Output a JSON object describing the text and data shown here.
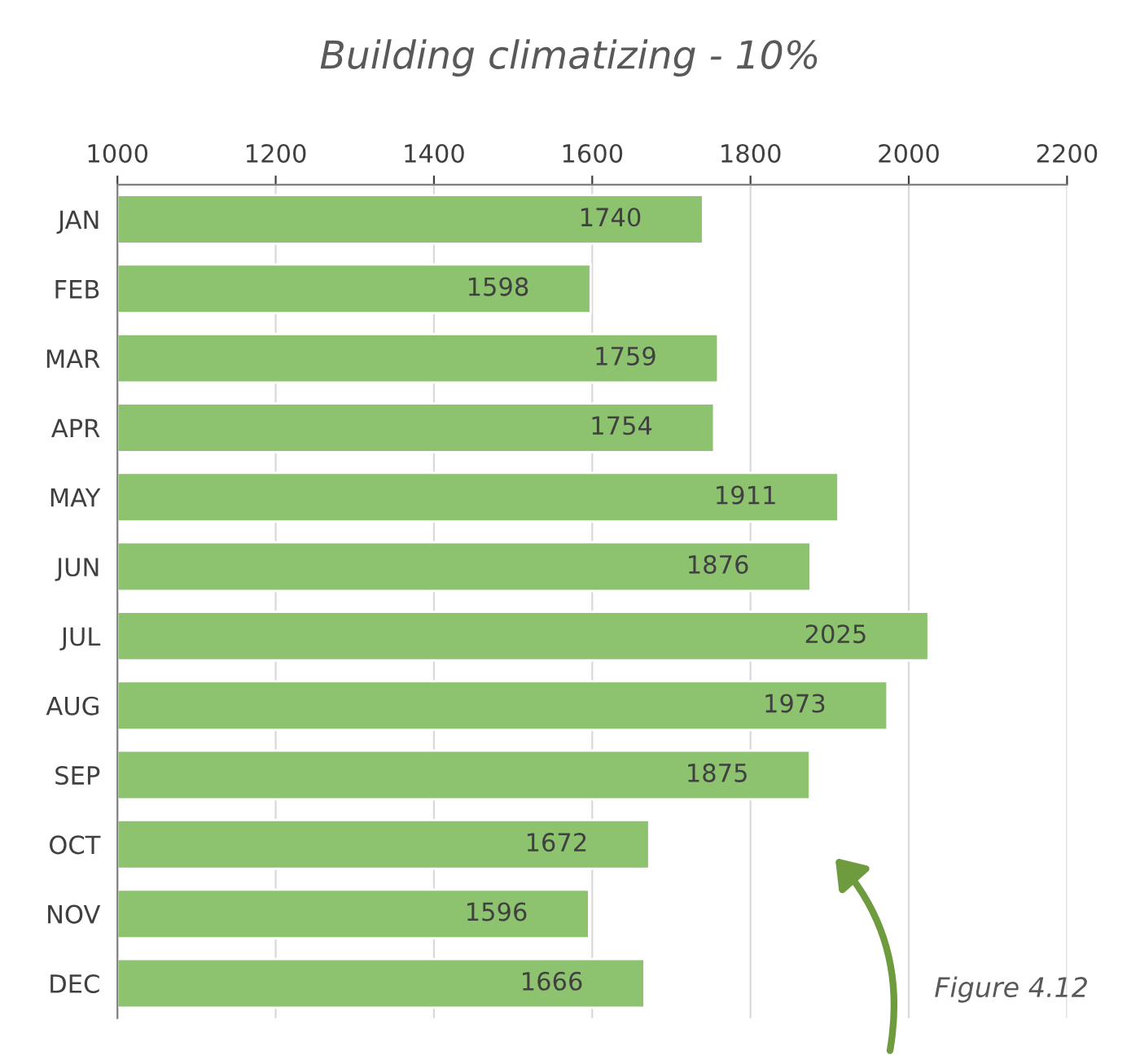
{
  "chart_data": {
    "type": "bar",
    "orientation": "horizontal",
    "title": "Building climatizing - 10%",
    "categories": [
      "JAN",
      "FEB",
      "MAR",
      "APR",
      "MAY",
      "JUN",
      "JUL",
      "AUG",
      "SEP",
      "OCT",
      "NOV",
      "DEC"
    ],
    "values": [
      1740,
      1598,
      1759,
      1754,
      1911,
      1876,
      2025,
      1973,
      1875,
      1672,
      1596,
      1666
    ],
    "color": "#8dc26f",
    "xlim": [
      1000,
      2200
    ],
    "xticks": [
      1000,
      1200,
      1400,
      1600,
      1800,
      2000,
      2200
    ],
    "grid": "x",
    "data_labels": true,
    "annotations": [
      "Figure 4.12"
    ]
  }
}
